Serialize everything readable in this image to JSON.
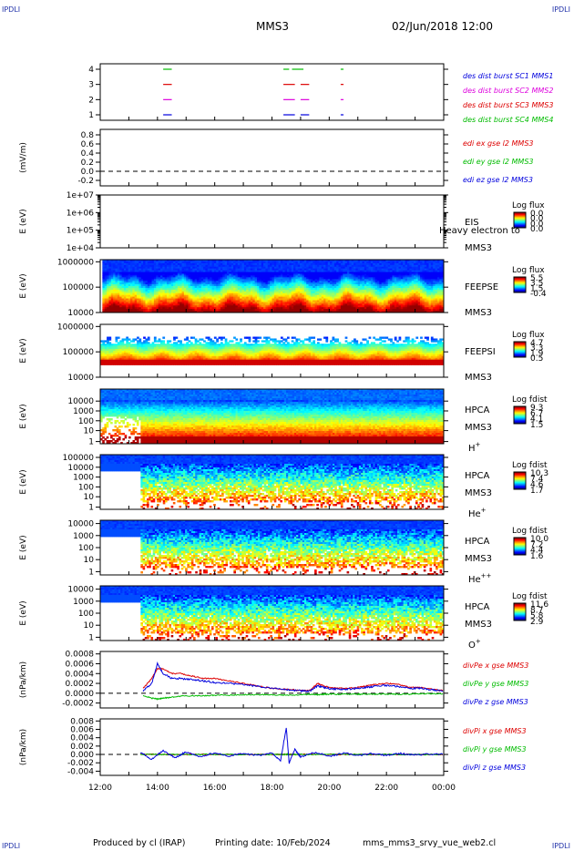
{
  "header": {
    "corner_tl": "IPDLI",
    "corner_tr": "IPDLI",
    "corner_bl": "IPDLI",
    "corner_br": "IPDLI",
    "spacecraft": "MMS3",
    "datetime": "02/Jun/2018 12:00"
  },
  "footer": {
    "produced_by": "Produced by cl (IRAP)",
    "printing_date": "Printing date: 10/Feb/2024",
    "script": "mms_mms3_srvy_vue_web2.cl"
  },
  "x_ticks": [
    "12:00",
    "14:00",
    "16:00",
    "18:00",
    "20:00",
    "22:00",
    "00:00"
  ],
  "colors": {
    "blue": "#0000dd",
    "magenta": "#dd00dd",
    "red": "#dd0000",
    "green": "#00bb00",
    "frame": "#000000"
  },
  "chart_data": [
    {
      "type": "timeline",
      "panel": "burst",
      "y_ticks": [
        "4",
        "3",
        "2",
        "1"
      ],
      "x_range": [
        "12:00",
        "00:00"
      ],
      "legend": [
        "des dist burst SC1 MMS1",
        "des dist burst SC2 MMS2",
        "des dist burst SC3 MMS3",
        "des dist burst SC4 MMS4"
      ],
      "intervals_hours": [
        {
          "sc": 4,
          "ranges": [
            [
              14.2,
              14.5
            ],
            [
              18.4,
              18.6
            ],
            [
              18.7,
              19.1
            ],
            [
              20.4,
              20.5
            ]
          ]
        },
        {
          "sc": 3,
          "ranges": [
            [
              14.2,
              14.5
            ],
            [
              18.4,
              18.8
            ],
            [
              19.0,
              19.3
            ],
            [
              20.4,
              20.5
            ]
          ]
        },
        {
          "sc": 2,
          "ranges": [
            [
              14.2,
              14.5
            ],
            [
              18.4,
              18.8
            ],
            [
              19.0,
              19.3
            ],
            [
              20.4,
              20.5
            ]
          ]
        },
        {
          "sc": 1,
          "ranges": [
            [
              14.2,
              14.5
            ],
            [
              18.4,
              18.8
            ],
            [
              19.0,
              19.3
            ],
            [
              20.4,
              20.5
            ]
          ]
        }
      ]
    },
    {
      "type": "line",
      "panel": "edi",
      "ylabel": "(mV/m)",
      "y_ticks": [
        "0.8",
        "0.6",
        "0.4",
        "0.2",
        "0.0",
        "-0.2"
      ],
      "ylim": [
        -0.2,
        0.9
      ],
      "legend": [
        "edi ex gse l2 MMS3",
        "edi ey gse l2 MMS3",
        "edi ez gse l2 MMS3"
      ],
      "series": []
    },
    {
      "type": "heatmap",
      "panel": "eis",
      "ylabel": "E (eV)",
      "y_ticks": [
        "1e+07",
        "1e+06",
        "1e+05",
        "1e+04"
      ],
      "right_labels": [
        "EIS",
        "MMS3"
      ],
      "overlay_text": "Heavy electron to",
      "colorbar_title": "Log flux",
      "colorbar_ticks": [
        "0.0",
        "0.0",
        "0.0",
        "0.0"
      ]
    },
    {
      "type": "heatmap",
      "panel": "feepse",
      "ylabel": "E (eV)",
      "y_ticks": [
        "1000000",
        "100000",
        "10000"
      ],
      "right_labels": [
        "FEEPSE",
        "MMS3"
      ],
      "colorbar_title": "Log flux",
      "colorbar_ticks": [
        "5.5",
        "3.5",
        "1.5",
        "-0.4"
      ]
    },
    {
      "type": "heatmap",
      "panel": "feepsi",
      "ylabel": "E (eV)",
      "y_ticks": [
        "1000000",
        "100000",
        "10000"
      ],
      "right_labels": [
        "FEEPSI",
        "MMS3"
      ],
      "colorbar_title": "Log flux",
      "colorbar_ticks": [
        "4.7",
        "3.3",
        "1.9",
        "0.5"
      ]
    },
    {
      "type": "heatmap",
      "panel": "hpca-h",
      "ylabel": "E (eV)",
      "y_ticks": [
        "10000",
        "1000",
        "100",
        "10",
        "1"
      ],
      "right_labels": [
        "HPCA",
        "MMS3",
        "H+"
      ],
      "colorbar_title": "Log fdist",
      "colorbar_ticks": [
        "9.3",
        "6.7",
        "4.1",
        "1.5"
      ]
    },
    {
      "type": "heatmap",
      "panel": "hpca-he",
      "ylabel": "E (eV)",
      "y_ticks": [
        "100000",
        "10000",
        "1000",
        "100",
        "10",
        "1"
      ],
      "right_labels": [
        "HPCA",
        "MMS3",
        "He+"
      ],
      "colorbar_title": "Log fdist",
      "colorbar_ticks": [
        "10.3",
        "7.4",
        "4.6",
        "1.7"
      ]
    },
    {
      "type": "heatmap",
      "panel": "hpca-hepp",
      "ylabel": "E (eV)",
      "y_ticks": [
        "10000",
        "1000",
        "100",
        "10",
        "1"
      ],
      "right_labels": [
        "HPCA",
        "MMS3",
        "He++"
      ],
      "colorbar_title": "Log fdist",
      "colorbar_ticks": [
        "10.0",
        "7.2",
        "4.4",
        "1.6"
      ]
    },
    {
      "type": "heatmap",
      "panel": "hpca-o",
      "ylabel": "E (eV)",
      "y_ticks": [
        "10000",
        "1000",
        "100",
        "10",
        "1"
      ],
      "right_labels": [
        "HPCA",
        "MMS3",
        "O+"
      ],
      "colorbar_title": "Log fdist",
      "colorbar_ticks": [
        "11.6",
        "8.7",
        "5.8",
        "2.9"
      ]
    },
    {
      "type": "line",
      "panel": "divpe",
      "ylabel": "(nPa/km)",
      "y_ticks": [
        "0.0008",
        "0.0006",
        "0.0004",
        "0.0002",
        "0.0000",
        "-0.0002"
      ],
      "ylim": [
        -0.0003,
        0.00085
      ],
      "legend": [
        "divPe x gse MMS3",
        "divPe y gse MMS3",
        "divPe z gse MMS3"
      ],
      "x_hours": [
        12,
        13.3,
        13.5,
        13.8,
        14.0,
        14.2,
        14.5,
        14.8,
        15.2,
        15.6,
        16.0,
        16.5,
        17.0,
        17.5,
        18.0,
        18.5,
        19.0,
        19.3,
        19.6,
        19.8,
        20.0,
        20.3,
        20.6,
        21.0,
        21.3,
        21.6,
        22.0,
        22.4,
        22.8,
        23.2,
        23.6,
        24
      ],
      "series": [
        {
          "name": "divPe x gse MMS3",
          "values": [
            null,
            null,
            0.0001,
            0.0003,
            0.0005,
            0.0005,
            0.0004,
            0.0004,
            0.00035,
            0.0003,
            0.0003,
            0.00025,
            0.0002,
            0.00015,
            0.0001,
            8e-05,
            6e-05,
            5e-05,
            0.0002,
            0.00015,
            0.00012,
            0.0001,
            0.0001,
            0.00012,
            0.00015,
            0.00018,
            0.0002,
            0.00018,
            0.00012,
            0.00012,
            8e-05,
            5e-05
          ]
        },
        {
          "name": "divPe y gse MMS3",
          "values": [
            null,
            null,
            -5e-05,
            -0.0001,
            -0.00012,
            -0.0001,
            -8e-05,
            -6e-05,
            -5e-05,
            -5e-05,
            -4e-05,
            -4e-05,
            -3e-05,
            -3e-05,
            -3e-05,
            -4e-05,
            -3e-05,
            -2e-05,
            -3e-05,
            -2e-05,
            -2e-05,
            -2e-05,
            -2e-05,
            -2e-05,
            -2e-05,
            -2e-05,
            -2e-05,
            -2e-05,
            -2e-05,
            -1e-05,
            -1e-05,
            -1e-05
          ]
        },
        {
          "name": "divPe z gse MMS3",
          "values": [
            null,
            null,
            5e-05,
            0.0002,
            0.0006,
            0.0004,
            0.0003,
            0.0003,
            0.00028,
            0.00025,
            0.00022,
            0.0002,
            0.00018,
            0.00014,
            0.0001,
            7e-05,
            5e-05,
            4e-05,
            0.00015,
            0.00012,
            0.0001,
            8e-05,
            8e-05,
            0.0001,
            0.00012,
            0.00014,
            0.00016,
            0.00014,
            0.0001,
            0.0001,
            7e-05,
            4e-05
          ]
        }
      ]
    },
    {
      "type": "line",
      "panel": "divpi",
      "ylabel": "(nPa/km)",
      "y_ticks": [
        "0.008",
        "0.006",
        "0.004",
        "0.002",
        "0.000",
        "-0.002",
        "-0.004"
      ],
      "ylim": [
        -0.005,
        0.0085
      ],
      "legend": [
        "divPi x gse MMS3",
        "divPi y gse MMS3",
        "divPi z gse MMS3"
      ],
      "x_hours": [
        12,
        13.4,
        13.8,
        14.2,
        14.6,
        15.0,
        15.5,
        16.0,
        16.5,
        17.0,
        17.5,
        18.0,
        18.3,
        18.5,
        18.6,
        18.8,
        19.0,
        19.5,
        20.0,
        20.5,
        21.0,
        21.5,
        22.0,
        22.5,
        23.0,
        23.5,
        24
      ],
      "series": [
        {
          "name": "divPi x gse MMS3",
          "values": [
            null,
            0.0,
            0.0,
            0.0,
            0.0,
            0.0,
            0.0,
            0.0,
            0.0,
            0.0,
            0.0,
            0.0,
            0.0,
            0.0,
            0.0,
            0.0,
            0.0,
            0.0,
            0.0,
            0.0,
            0.0,
            0.0,
            0.0,
            0.0,
            0.0,
            0.0,
            0.0
          ]
        },
        {
          "name": "divPi y gse MMS3",
          "values": [
            null,
            0.0,
            0.0,
            0.0,
            0.0,
            0.0,
            0.0,
            0.0,
            0.0,
            0.0,
            0.0,
            0.0,
            0.0,
            0.0,
            0.0,
            0.0,
            0.0,
            0.0,
            0.0,
            0.0,
            0.0,
            0.0,
            0.0,
            0.0,
            0.0,
            0.0,
            0.0
          ]
        },
        {
          "name": "divPi z gse MMS3",
          "values": [
            null,
            0.0005,
            -0.0012,
            0.001,
            -0.0008,
            0.0006,
            -0.0005,
            0.0004,
            -0.0004,
            0.0003,
            -0.0003,
            0.0004,
            -0.0015,
            0.0065,
            -0.002,
            0.0012,
            -0.0006,
            0.0005,
            -0.0004,
            0.0003,
            -0.0002,
            0.0002,
            -0.0002,
            0.0002,
            -0.0001,
            0.0001,
            0.0
          ]
        }
      ]
    }
  ]
}
